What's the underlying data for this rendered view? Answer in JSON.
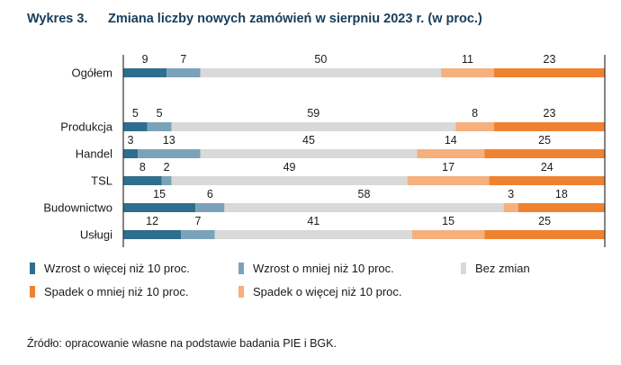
{
  "header": {
    "figure_number": "Wykres 3.",
    "title": "Zmiana liczby nowych zamówień w sierpniu 2023 r. (w proc.)"
  },
  "chart_data": {
    "type": "bar",
    "orientation": "horizontal",
    "stacked": true,
    "percent_stacked": true,
    "title": "Zmiana liczby nowych zamówień w sierpniu 2023 r. (w proc.)",
    "xlabel": "",
    "ylabel": "",
    "xlim": [
      0,
      100
    ],
    "grid": false,
    "legend_position": "bottom",
    "categories": [
      "Ogółem",
      "Produkcja",
      "Handel",
      "TSL",
      "Budownictwo",
      "Usługi"
    ],
    "series": [
      {
        "name": "Wzrost o więcej niż 10 proc.",
        "color": "#2e6e8e",
        "values": [
          9,
          5,
          3,
          8,
          15,
          12
        ]
      },
      {
        "name": "Wzrost o mniej niż 10 proc.",
        "color": "#7aa3ba",
        "values": [
          7,
          5,
          13,
          2,
          6,
          7
        ]
      },
      {
        "name": "Bez zmian",
        "color": "#d9d9d9",
        "values": [
          50,
          59,
          45,
          49,
          58,
          41
        ]
      },
      {
        "name": "Spadek o więcej niż 10 proc.",
        "color": "#f5b07d",
        "values": [
          11,
          8,
          14,
          17,
          3,
          15
        ]
      },
      {
        "name": "Spadek o mniej niż 10 proc.",
        "color": "#ef8231",
        "values": [
          23,
          23,
          25,
          24,
          18,
          25
        ]
      }
    ]
  },
  "legend": {
    "items": [
      {
        "label": "Wzrost o więcej niż 10 proc.",
        "color": "#2e6e8e"
      },
      {
        "label": "Wzrost o mniej niż 10 proc.",
        "color": "#7aa3ba"
      },
      {
        "label": "Bez zmian",
        "color": "#d9d9d9"
      },
      {
        "label": "Spadek o mniej niż 10 proc.",
        "color": "#ef8231"
      },
      {
        "label": "Spadek o więcej niż 10 proc.",
        "color": "#f5b07d"
      }
    ]
  },
  "footer": {
    "source": "Źródło: opracowanie własne na podstawie badania PIE i BGK."
  }
}
